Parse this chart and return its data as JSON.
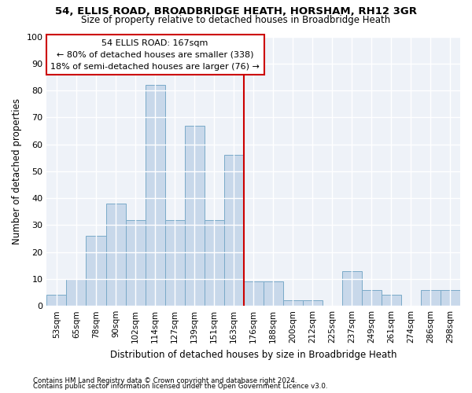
{
  "title1": "54, ELLIS ROAD, BROADBRIDGE HEATH, HORSHAM, RH12 3GR",
  "title2": "Size of property relative to detached houses in Broadbridge Heath",
  "xlabel": "Distribution of detached houses by size in Broadbridge Heath",
  "ylabel": "Number of detached properties",
  "footnote1": "Contains HM Land Registry data © Crown copyright and database right 2024.",
  "footnote2": "Contains public sector information licensed under the Open Government Licence v3.0.",
  "annotation_line1": "54 ELLIS ROAD: 167sqm",
  "annotation_line2": "← 80% of detached houses are smaller (338)",
  "annotation_line3": "18% of semi-detached houses are larger (76) →",
  "bar_categories": [
    "53sqm",
    "65sqm",
    "78sqm",
    "90sqm",
    "102sqm",
    "114sqm",
    "127sqm",
    "139sqm",
    "151sqm",
    "163sqm",
    "176sqm",
    "188sqm",
    "200sqm",
    "212sqm",
    "225sqm",
    "237sqm",
    "249sqm",
    "261sqm",
    "274sqm",
    "286sqm",
    "298sqm"
  ],
  "bar_values": [
    4,
    10,
    26,
    38,
    32,
    82,
    32,
    67,
    32,
    56,
    9,
    9,
    2,
    2,
    0,
    13,
    6,
    4,
    0,
    6,
    6
  ],
  "bar_color": "#c8d8ea",
  "bar_edgecolor": "#7aaac8",
  "vline_color": "#cc0000",
  "vline_x": 9.5,
  "annotation_box_color": "#cc0000",
  "ylim": [
    0,
    100
  ],
  "background_color": "#ffffff",
  "plot_bg_color": "#eef2f8"
}
